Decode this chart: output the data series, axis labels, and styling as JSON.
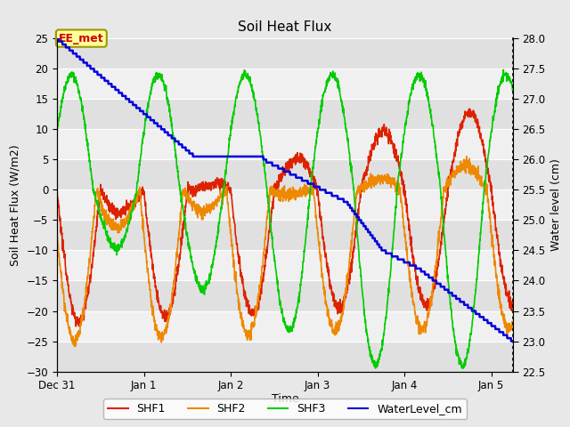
{
  "title": "Soil Heat Flux",
  "ylabel_left": "Soil Heat Flux (W/m2)",
  "ylabel_right": "Water level (cm)",
  "xlabel": "Time",
  "ylim_left": [
    -30,
    25
  ],
  "ylim_right": [
    22.5,
    28.0
  ],
  "yticks_left": [
    -30,
    -25,
    -20,
    -15,
    -10,
    -5,
    0,
    5,
    10,
    15,
    20,
    25
  ],
  "yticks_right": [
    22.5,
    23.0,
    23.5,
    24.0,
    24.5,
    25.0,
    25.5,
    26.0,
    26.5,
    27.0,
    27.5,
    28.0
  ],
  "fig_bg_color": "#e8e8e8",
  "plot_bg_color": "#f5f5f5",
  "stripe_colors": [
    "#e0e0e0",
    "#f0f0f0"
  ],
  "grid_color": "#ffffff",
  "colors": {
    "SHF1": "#dd2200",
    "SHF2": "#ee8800",
    "SHF3": "#00cc00",
    "WaterLevel_cm": "#0000dd"
  },
  "annotation_text": "EE_met",
  "annotation_color": "#cc0000",
  "annotation_bg": "#ffff99",
  "annotation_border": "#999900",
  "xtick_positions": [
    0,
    24,
    48,
    72,
    96,
    120
  ],
  "xtick_labels": [
    "Dec 31",
    "Jan 1",
    "Jan 2",
    "Jan 3",
    "Jan 4",
    "Jan 5"
  ],
  "xlim": [
    0,
    126
  ],
  "legend_labels": [
    "SHF1",
    "SHF2",
    "SHF3",
    "WaterLevel_cm"
  ]
}
